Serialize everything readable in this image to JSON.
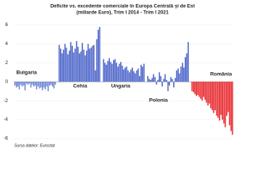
{
  "chart_data": {
    "type": "bar",
    "title": "Deficite vs. excedente comerciale în Europa Centrală și de Est",
    "subtitle": "(miliarde Euro), Trim I 2014 - Trim I 2021",
    "source": "Sursa datelor: Eurostat",
    "ylim": [
      -6.5,
      6.8
    ],
    "yticks": [
      -6,
      -4,
      -2,
      0,
      2,
      4,
      6
    ],
    "grid": true,
    "series": [
      {
        "name": "Bulgaria",
        "color": "#6f86d6",
        "values": [
          -0.4,
          -0.6,
          -0.5,
          -0.8,
          -0.3,
          -0.5,
          -0.4,
          -0.9,
          -0.2,
          -0.3,
          -0.2,
          -0.6,
          -0.3,
          -0.5,
          -0.4,
          -0.8,
          -0.5,
          -0.7,
          -0.6,
          -0.9,
          -0.6,
          -0.8,
          -0.5,
          -1.0,
          -0.4,
          -0.3,
          -0.5,
          -0.7,
          -0.3
        ]
      },
      {
        "name": "Cehia",
        "color": "#4a63c8",
        "values": [
          3.9,
          3.5,
          3.0,
          3.4,
          4.0,
          3.6,
          2.9,
          3.3,
          4.2,
          3.8,
          3.1,
          3.5,
          4.3,
          3.7,
          3.0,
          3.2,
          4.1,
          3.4,
          2.8,
          3.3,
          4.0,
          3.5,
          3.6,
          3.8,
          3.9,
          1.2,
          4.5,
          5.5,
          5.8
        ]
      },
      {
        "name": "Ungaria",
        "color": "#4a63c8",
        "values": [
          2.4,
          2.0,
          1.8,
          2.2,
          2.5,
          2.1,
          1.9,
          2.3,
          2.4,
          2.0,
          1.6,
          1.9,
          2.1,
          1.7,
          1.3,
          1.5,
          1.6,
          1.2,
          1.0,
          1.3,
          1.5,
          1.1,
          0.9,
          1.2,
          1.4,
          0.6,
          1.8,
          1.6,
          1.9
        ]
      },
      {
        "name": "Polonia",
        "color": "#4a63c8",
        "values": [
          0.6,
          0.3,
          0.2,
          0.4,
          0.8,
          0.5,
          -0.3,
          0.2,
          1.0,
          0.6,
          -0.5,
          0.3,
          0.8,
          0.2,
          -1.0,
          -0.4,
          0.5,
          0.3,
          -0.6,
          0.4,
          1.2,
          1.4,
          0.9,
          1.6,
          2.0,
          1.5,
          2.6,
          3.0,
          4.2
        ]
      },
      {
        "name": "România",
        "color": "#e8262b",
        "values": [
          -1.0,
          -1.1,
          -1.3,
          -1.5,
          -1.4,
          -1.6,
          -1.8,
          -2.0,
          -1.6,
          -1.9,
          -2.2,
          -2.5,
          -2.3,
          -2.8,
          -3.0,
          -3.3,
          -3.0,
          -3.6,
          -3.8,
          -4.1,
          -3.5,
          -4.0,
          -4.4,
          -4.8,
          -3.6,
          -3.2,
          -4.6,
          -5.2,
          -5.6
        ]
      }
    ]
  }
}
